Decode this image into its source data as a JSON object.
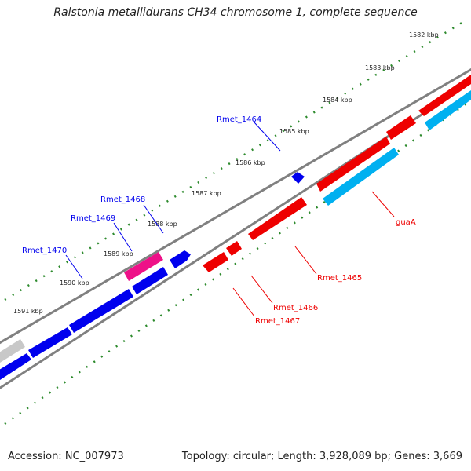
{
  "title": "Ralstonia metallidurans CH34 chromosome 1, complete sequence",
  "footer": {
    "accession": "Accession: NC_007973",
    "summary": "Topology: circular; Length: 3,928,089 bp; Genes: 3,669"
  },
  "colors": {
    "backbone": "#808080",
    "ticks": "#2e8b2e",
    "blue": "#0000ee",
    "red": "#ee0000",
    "cyan": "#00b0f0",
    "magenta": "#ee1188",
    "gray": "#c8c8c8"
  },
  "tick_labels": [
    "1582 kbp",
    "1583 kbp",
    "1584 kbp",
    "1585 kbp",
    "1586 kbp",
    "1587 kbp",
    "1588 kbp",
    "1589 kbp",
    "1590 kbp",
    "1591 kbp"
  ],
  "gene_labels": [
    {
      "text": "Rmet_1464",
      "strand": "forward"
    },
    {
      "text": "Rmet_1468",
      "strand": "forward"
    },
    {
      "text": "Rmet_1469",
      "strand": "forward"
    },
    {
      "text": "Rmet_1470",
      "strand": "forward"
    },
    {
      "text": "guaA",
      "strand": "reverse"
    },
    {
      "text": "Rmet_1465",
      "strand": "reverse"
    },
    {
      "text": "Rmet_1466",
      "strand": "reverse"
    },
    {
      "text": "Rmet_1467",
      "strand": "reverse"
    }
  ]
}
